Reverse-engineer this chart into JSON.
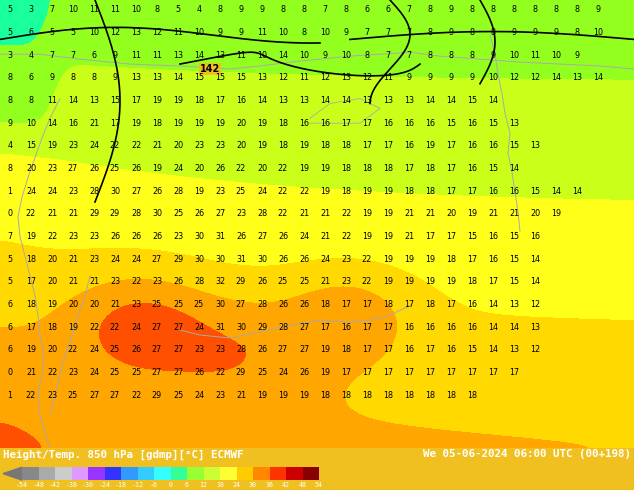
{
  "title_left": "Height/Temp. 850 hPa [gdmp][°C] ECMWF",
  "title_right": "We 05-06-2024 06:00 UTC (00+198)",
  "colorbar_colors": [
    "#888888",
    "#aaaaaa",
    "#cccccc",
    "#dd99ff",
    "#9933ff",
    "#3333ff",
    "#3399ff",
    "#33ccff",
    "#33ffff",
    "#33ff99",
    "#99ff33",
    "#ccff33",
    "#ffff33",
    "#ffcc00",
    "#ff8800",
    "#ff3300",
    "#cc0000",
    "#880000"
  ],
  "colorbar_tick_labels": [
    "-54",
    "-48",
    "-42",
    "-38",
    "-30",
    "-24",
    "-18",
    "-12",
    "-6",
    "0",
    "6",
    "12",
    "18",
    "24",
    "30",
    "36",
    "42",
    "48",
    "54"
  ],
  "fig_width": 6.34,
  "fig_height": 4.9,
  "dpi": 100,
  "bottom_bar_color": "#000000",
  "text_color_bottom": "#ffffff",
  "map_bg": "#f0b800",
  "yellow_bg": "#f0c020"
}
